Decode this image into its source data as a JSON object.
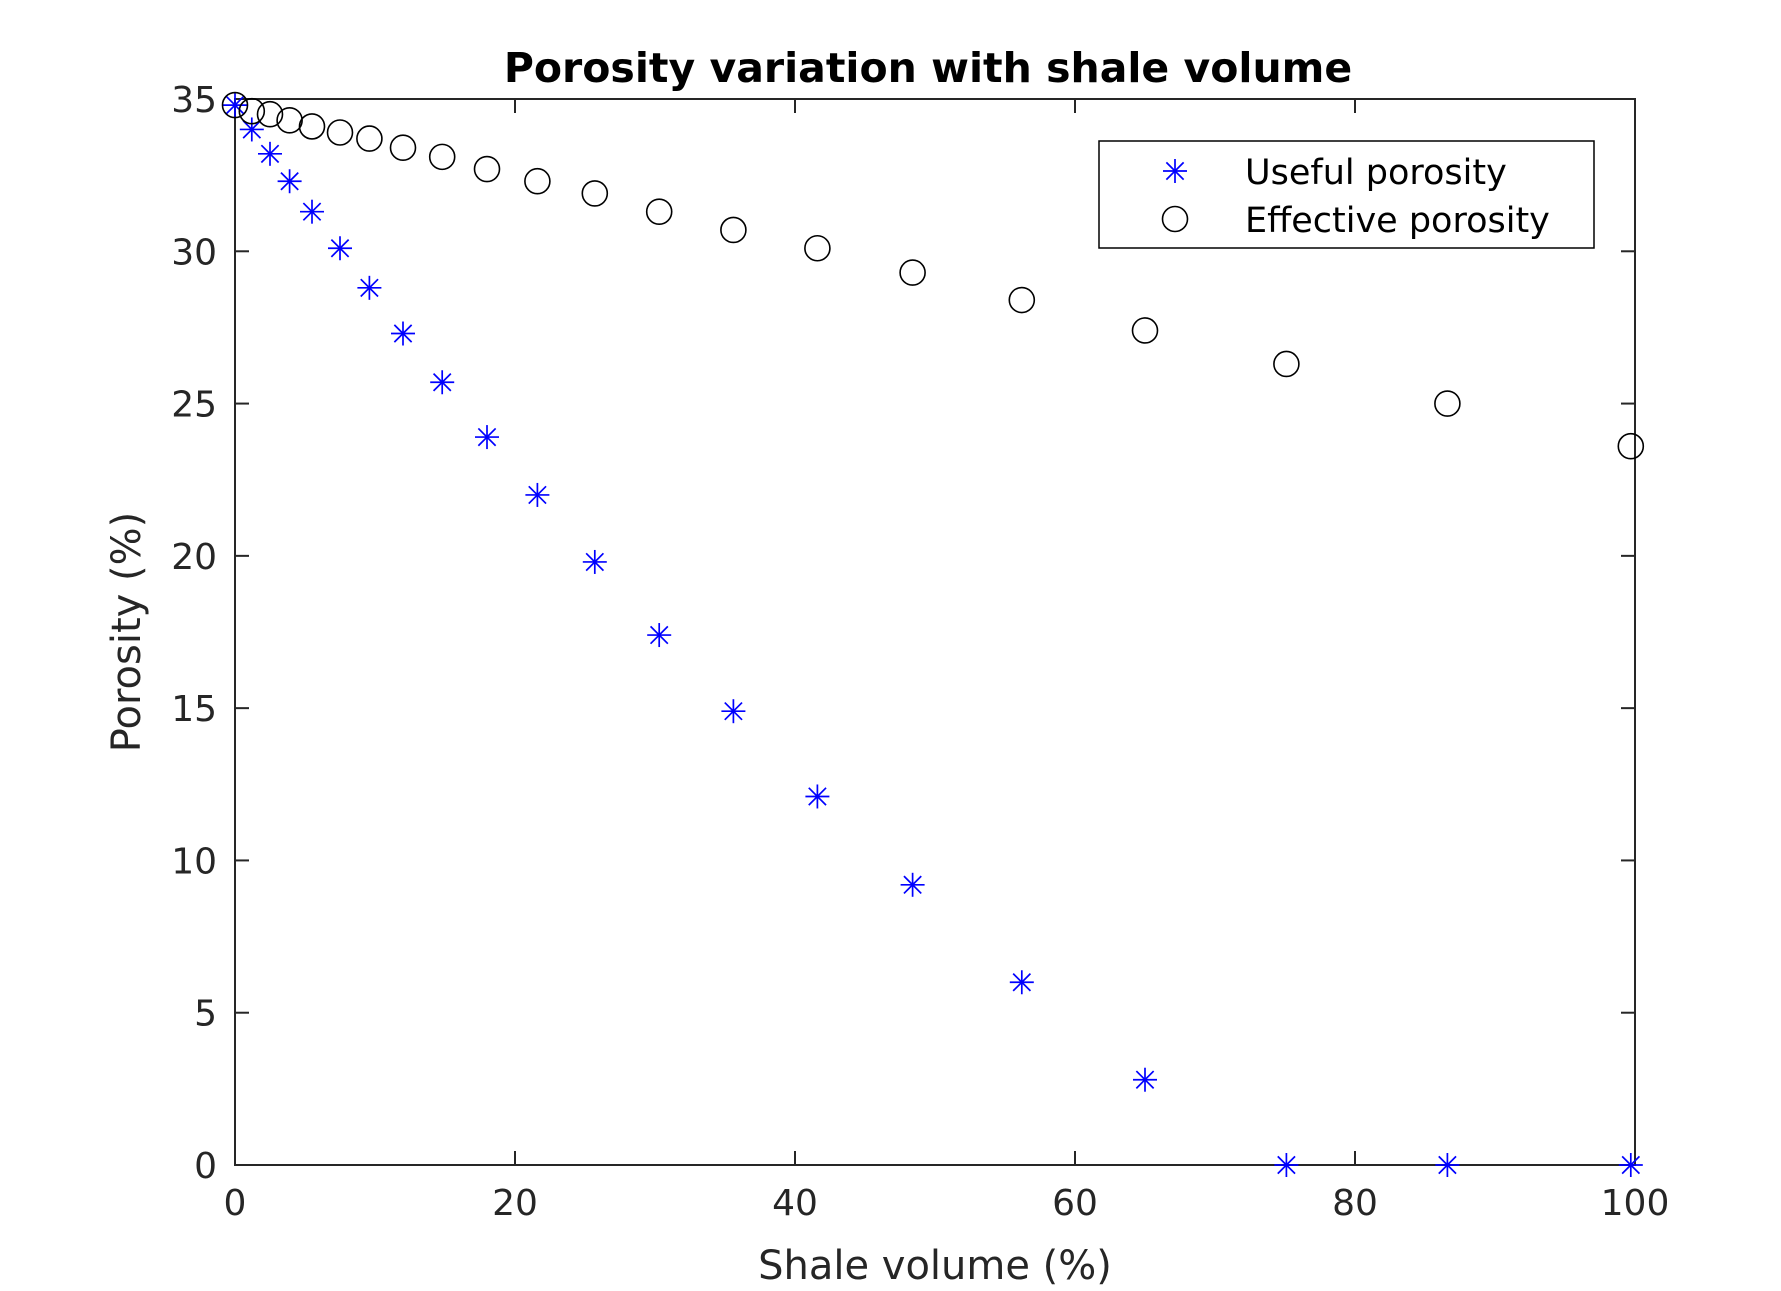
{
  "chart_data": {
    "type": "scatter",
    "title": "Porosity variation with shale volume",
    "xlabel": "Shale volume (%)",
    "ylabel": "Porosity (%)",
    "xlim": [
      0,
      100
    ],
    "ylim": [
      0,
      35
    ],
    "xticks": [
      0,
      20,
      40,
      60,
      80,
      100
    ],
    "yticks": [
      0,
      5,
      10,
      15,
      20,
      25,
      30,
      35
    ],
    "grid": false,
    "legend_position": "top-right",
    "series": [
      {
        "name": "Useful porosity",
        "marker": "asterisk",
        "color": "#0000ff",
        "x": [
          0,
          1.2,
          2.5,
          3.9,
          5.5,
          7.5,
          9.6,
          12.0,
          14.8,
          18.0,
          21.6,
          25.7,
          30.3,
          35.6,
          41.6,
          48.4,
          56.2,
          65.0,
          75.1,
          86.6,
          99.7
        ],
        "y": [
          34.8,
          34.0,
          33.2,
          32.3,
          31.3,
          30.1,
          28.8,
          27.3,
          25.7,
          23.9,
          22.0,
          19.8,
          17.4,
          14.9,
          12.1,
          9.2,
          6.0,
          2.8,
          0,
          0,
          0
        ]
      },
      {
        "name": "Effective porosity",
        "marker": "circle",
        "color": "#000000",
        "x": [
          0,
          1.2,
          2.5,
          3.9,
          5.5,
          7.5,
          9.6,
          12.0,
          14.8,
          18.0,
          21.6,
          25.7,
          30.3,
          35.6,
          41.6,
          48.4,
          56.2,
          65.0,
          75.1,
          86.6,
          99.7
        ],
        "y": [
          34.8,
          34.6,
          34.5,
          34.3,
          34.1,
          33.9,
          33.7,
          33.4,
          33.1,
          32.7,
          32.3,
          31.9,
          31.3,
          30.7,
          30.1,
          29.3,
          28.4,
          27.4,
          26.3,
          25.0,
          23.6
        ]
      }
    ]
  }
}
